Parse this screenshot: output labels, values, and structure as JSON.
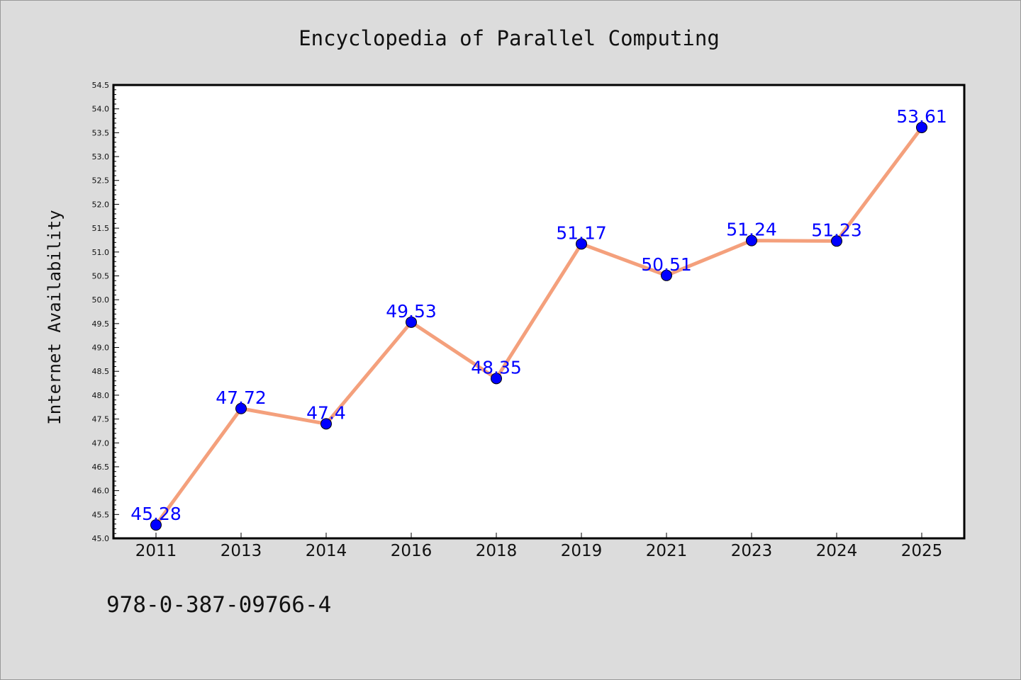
{
  "chart_data": {
    "type": "line",
    "title": "Encyclopedia of Parallel Computing",
    "ylabel": "Internet Availability",
    "xlabel": "",
    "categories": [
      "2011",
      "2013",
      "2014",
      "2016",
      "2018",
      "2019",
      "2021",
      "2023",
      "2024",
      "2025"
    ],
    "values": [
      45.28,
      47.72,
      47.4,
      49.53,
      48.35,
      51.17,
      50.51,
      51.24,
      51.23,
      53.61
    ],
    "point_labels": [
      "45.28",
      "47.72",
      "47.4",
      "49.53",
      "48.35",
      "51.17",
      "50.51",
      "51.24",
      "51.23",
      "53.61"
    ],
    "ylim": [
      45.0,
      54.5
    ],
    "yticks": [
      "45.0",
      "45.5",
      "46.0",
      "46.5",
      "47.0",
      "47.5",
      "48.0",
      "48.5",
      "49.0",
      "49.5",
      "50.0",
      "50.5",
      "51.0",
      "51.5",
      "52.0",
      "52.5",
      "53.0",
      "53.5",
      "54.0",
      "54.5"
    ],
    "grid": false,
    "line_color": "#f4a07c",
    "marker_color": "#0000ff",
    "label_color": "#0000ff"
  },
  "footer": {
    "isbn": "978-0-387-09766-4"
  }
}
